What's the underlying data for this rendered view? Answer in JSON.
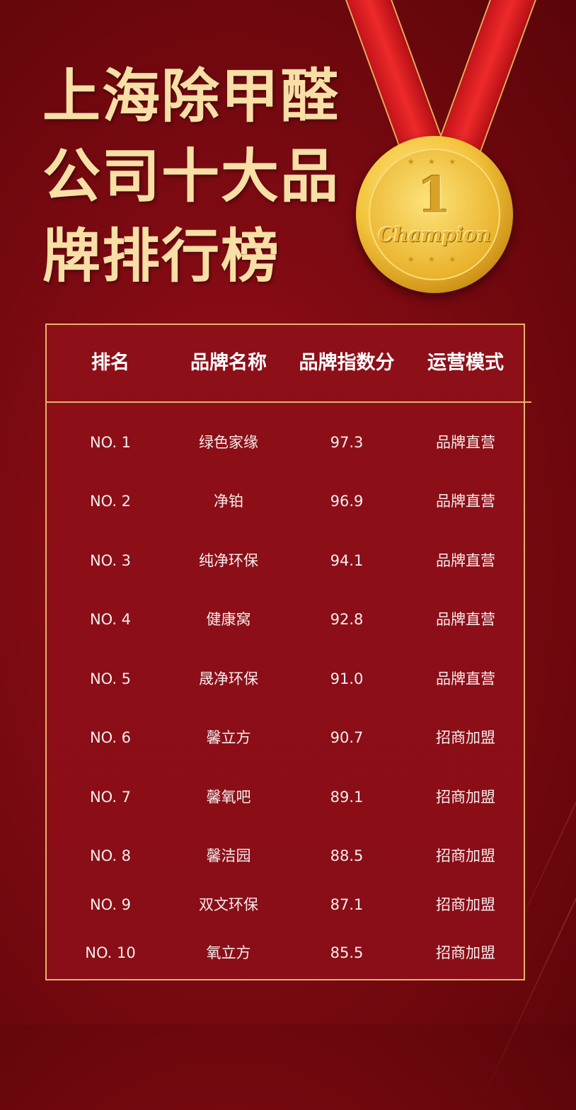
{
  "title_lines": [
    "上海除甲醛",
    "公司十大品",
    "牌排行榜"
  ],
  "medal": {
    "number": "1",
    "text": "Champion",
    "ribbon_color": "#e52324",
    "gold_color": "#f3c43c"
  },
  "colors": {
    "background": "#7d0a12",
    "title": "#f7dfa6",
    "border": "#e7b36a"
  },
  "table": {
    "headers": [
      "排名",
      "品牌名称",
      "品牌指数分",
      "运营模式"
    ],
    "rows": [
      {
        "rank": "NO. 1",
        "brand": "绿色家缘",
        "score": "97.3",
        "mode": "品牌直营"
      },
      {
        "rank": "NO. 2",
        "brand": "净铂",
        "score": "96.9",
        "mode": "品牌直营"
      },
      {
        "rank": "NO. 3",
        "brand": "纯净环保",
        "score": "94.1",
        "mode": "品牌直营"
      },
      {
        "rank": "NO. 4",
        "brand": "健康窝",
        "score": "92.8",
        "mode": "品牌直营"
      },
      {
        "rank": "NO. 5",
        "brand": "晟净环保",
        "score": "91.0",
        "mode": "品牌直营"
      },
      {
        "rank": "NO. 6",
        "brand": "馨立方",
        "score": "90.7",
        "mode": "招商加盟"
      },
      {
        "rank": "NO. 7",
        "brand": "馨氧吧",
        "score": "89.1",
        "mode": "招商加盟"
      },
      {
        "rank": "NO. 8",
        "brand": "馨洁园",
        "score": "88.5",
        "mode": "招商加盟"
      },
      {
        "rank": "NO. 9",
        "brand": "双文环保",
        "score": "87.1",
        "mode": "招商加盟"
      },
      {
        "rank": "NO. 10",
        "brand": "氧立方",
        "score": "85.5",
        "mode": "招商加盟"
      }
    ]
  }
}
